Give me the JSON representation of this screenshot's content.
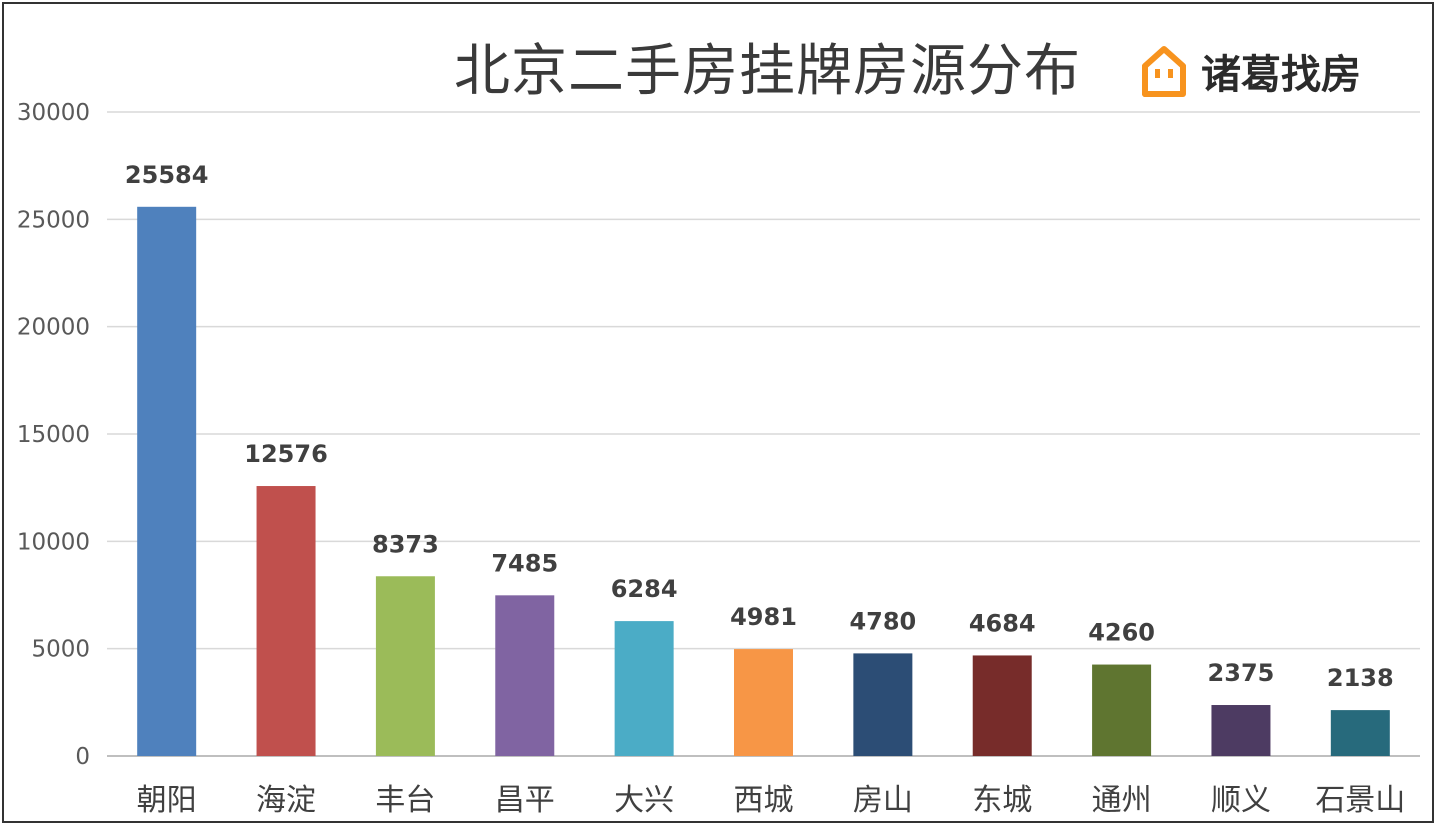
{
  "chart_data": {
    "type": "bar",
    "title": "北京二手房挂牌房源分布",
    "xlabel": "",
    "ylabel": "",
    "ylim": [
      0,
      30000
    ],
    "yticks": [
      0,
      5000,
      10000,
      15000,
      20000,
      25000,
      30000
    ],
    "grid": true,
    "legend": "none",
    "categories": [
      "朝阳",
      "海淀",
      "丰台",
      "昌平",
      "大兴",
      "西城",
      "房山",
      "东城",
      "通州",
      "顺义",
      "石景山"
    ],
    "values": [
      25584,
      12576,
      8373,
      7485,
      6284,
      4981,
      4780,
      4684,
      4260,
      2375,
      2138
    ],
    "colors": [
      "#4f81bd",
      "#c0504d",
      "#9bbb59",
      "#8064a2",
      "#4bacc6",
      "#f79646",
      "#2c4d75",
      "#772c2a",
      "#5f7530",
      "#4d3b62",
      "#276a7c"
    ]
  },
  "logo": {
    "text": "诸葛找房",
    "icon": "house-icon",
    "color": "#f7931e"
  }
}
